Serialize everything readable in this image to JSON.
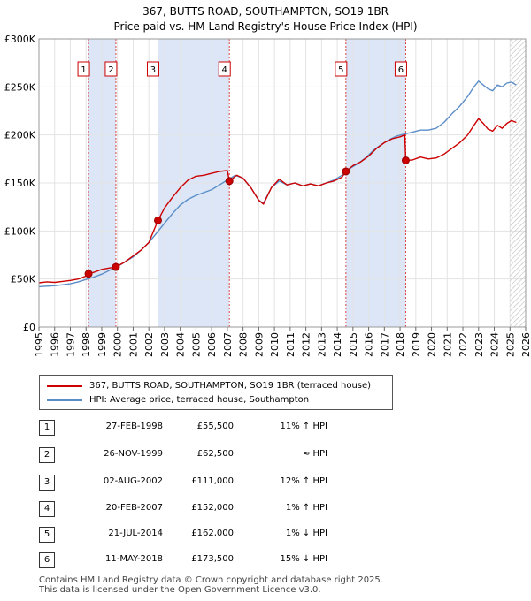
{
  "chart_data": {
    "type": "line",
    "title": "367, BUTTS ROAD, SOUTHAMPTON, SO19 1BR",
    "subtitle": "Price paid vs. HM Land Registry's House Price Index (HPI)",
    "xlabel": "",
    "ylabel": "",
    "xlim": [
      1995,
      2026
    ],
    "ylim": [
      0,
      300000
    ],
    "x_ticks": [
      "1995",
      "1996",
      "1997",
      "1998",
      "1999",
      "2000",
      "2001",
      "2002",
      "2003",
      "2004",
      "2005",
      "2006",
      "2007",
      "2008",
      "2009",
      "2010",
      "2011",
      "2012",
      "2013",
      "2014",
      "2015",
      "2016",
      "2017",
      "2018",
      "2019",
      "2020",
      "2021",
      "2022",
      "2023",
      "2024",
      "2025",
      "2026"
    ],
    "y_ticks": [
      {
        "value": 0,
        "label": "£0"
      },
      {
        "value": 50000,
        "label": "£50K"
      },
      {
        "value": 100000,
        "label": "£100K"
      },
      {
        "value": 150000,
        "label": "£150K"
      },
      {
        "value": 200000,
        "label": "£200K"
      },
      {
        "value": 250000,
        "label": "£250K"
      },
      {
        "value": 300000,
        "label": "£300K"
      }
    ],
    "shaded_periods": [
      [
        1998.16,
        1999.9
      ],
      [
        2002.58,
        2007.13
      ],
      [
        2014.55,
        2018.36
      ]
    ],
    "grid": true,
    "future_hatch_from": 2025.0,
    "series": [
      {
        "name": "367, BUTTS ROAD, SOUTHAMPTON, SO19 1BR (terraced house)",
        "color": "#cc0000",
        "x": [
          1995.0,
          1995.5,
          1996.0,
          1996.5,
          1997.0,
          1997.5,
          1998.0,
          1998.16,
          1998.5,
          1999.0,
          1999.5,
          1999.9,
          2000.5,
          2001.0,
          2001.5,
          2002.0,
          2002.58,
          2003.0,
          2003.5,
          2004.0,
          2004.5,
          2005.0,
          2005.5,
          2006.0,
          2006.5,
          2007.0,
          2007.13,
          2007.6,
          2008.0,
          2008.5,
          2009.0,
          2009.3,
          2009.8,
          2010.3,
          2010.8,
          2011.3,
          2011.8,
          2012.3,
          2012.8,
          2013.3,
          2013.8,
          2014.3,
          2014.55,
          2015.0,
          2015.5,
          2016.0,
          2016.5,
          2017.0,
          2017.5,
          2018.0,
          2018.3,
          2018.36,
          2018.8,
          2019.3,
          2019.8,
          2020.3,
          2020.8,
          2021.3,
          2021.8,
          2022.3,
          2022.7,
          2023.0,
          2023.3,
          2023.6,
          2023.9,
          2024.2,
          2024.5,
          2024.8,
          2025.1,
          2025.4
        ],
        "values": [
          46000,
          47000,
          46500,
          47500,
          48500,
          50000,
          53000,
          55500,
          57000,
          60000,
          61500,
          62500,
          68000,
          74000,
          80000,
          88000,
          111000,
          124000,
          135000,
          145000,
          153000,
          157000,
          158000,
          160000,
          162000,
          163000,
          152000,
          158000,
          155000,
          145000,
          132000,
          128000,
          145000,
          154000,
          148000,
          150000,
          147000,
          149000,
          147000,
          150000,
          152000,
          156000,
          162000,
          168000,
          172000,
          178000,
          186000,
          192000,
          196000,
          198000,
          200000,
          173500,
          174000,
          177000,
          175000,
          176000,
          180000,
          186000,
          192000,
          200000,
          210000,
          217000,
          212000,
          206000,
          204000,
          210000,
          207000,
          212000,
          215000,
          213000
        ]
      },
      {
        "name": "HPI: Average price, terraced house, Southampton",
        "color": "#5b8ec7",
        "x": [
          1995.0,
          1995.5,
          1996.0,
          1996.5,
          1997.0,
          1997.5,
          1998.0,
          1998.5,
          1999.0,
          1999.5,
          2000.0,
          2000.5,
          2001.0,
          2001.5,
          2002.0,
          2002.5,
          2003.0,
          2003.5,
          2004.0,
          2004.5,
          2005.0,
          2005.5,
          2006.0,
          2006.5,
          2007.0,
          2007.5,
          2008.0,
          2008.5,
          2009.0,
          2009.3,
          2009.8,
          2010.3,
          2010.8,
          2011.3,
          2011.8,
          2012.3,
          2012.8,
          2013.3,
          2013.8,
          2014.3,
          2014.8,
          2015.3,
          2015.8,
          2016.3,
          2016.8,
          2017.3,
          2017.8,
          2018.3,
          2018.8,
          2019.3,
          2019.8,
          2020.3,
          2020.8,
          2021.3,
          2021.8,
          2022.3,
          2022.7,
          2023.0,
          2023.3,
          2023.6,
          2023.9,
          2024.2,
          2024.5,
          2024.8,
          2025.1,
          2025.4
        ],
        "values": [
          42000,
          42500,
          43000,
          44000,
          45000,
          47000,
          49500,
          52000,
          55000,
          59000,
          63000,
          68000,
          73000,
          80000,
          88000,
          98000,
          108000,
          118000,
          127000,
          133000,
          137000,
          140000,
          143000,
          148000,
          153000,
          158000,
          155000,
          145000,
          132000,
          129000,
          145000,
          152000,
          148000,
          150000,
          147000,
          149000,
          147000,
          150000,
          153000,
          158000,
          165000,
          170000,
          176000,
          184000,
          190000,
          195000,
          199000,
          201000,
          203000,
          205000,
          205000,
          207000,
          213000,
          222000,
          230000,
          240000,
          250000,
          256000,
          252000,
          248000,
          246000,
          252000,
          250000,
          254000,
          255000,
          252000
        ]
      }
    ],
    "sale_markers": [
      {
        "label": "1",
        "x": 1998.16,
        "y": 55500
      },
      {
        "label": "2",
        "x": 1999.9,
        "y": 62500
      },
      {
        "label": "3",
        "x": 2002.58,
        "y": 111000
      },
      {
        "label": "4",
        "x": 2007.13,
        "y": 152000
      },
      {
        "label": "5",
        "x": 2014.55,
        "y": 162000
      },
      {
        "label": "6",
        "x": 2018.36,
        "y": 173500
      }
    ]
  },
  "legend": {
    "items": [
      {
        "label": "367, BUTTS ROAD, SOUTHAMPTON, SO19 1BR (terraced house)",
        "color": "#cc0000"
      },
      {
        "label": "HPI: Average price, terraced house, Southampton",
        "color": "#5b8ec7"
      }
    ]
  },
  "transactions": [
    {
      "num": "1",
      "date": "27-FEB-1998",
      "price": "£55,500",
      "hpi": "11% ↑ HPI"
    },
    {
      "num": "2",
      "date": "26-NOV-1999",
      "price": "£62,500",
      "hpi": "≈ HPI"
    },
    {
      "num": "3",
      "date": "02-AUG-2002",
      "price": "£111,000",
      "hpi": "12% ↑ HPI"
    },
    {
      "num": "4",
      "date": "20-FEB-2007",
      "price": "£152,000",
      "hpi": "1% ↑ HPI"
    },
    {
      "num": "5",
      "date": "21-JUL-2014",
      "price": "£162,000",
      "hpi": "1% ↓ HPI"
    },
    {
      "num": "6",
      "date": "11-MAY-2018",
      "price": "£173,500",
      "hpi": "15% ↓ HPI"
    }
  ],
  "footer": {
    "line1": "Contains HM Land Registry data © Crown copyright and database right 2025.",
    "line2": "This data is licensed under the Open Government Licence v3.0."
  }
}
